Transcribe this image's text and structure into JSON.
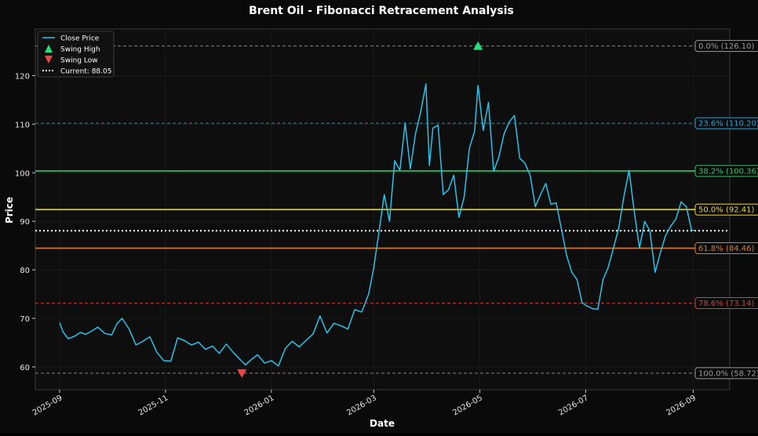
{
  "chart_data": {
    "type": "line",
    "title": "Brent Oil - Fibonacci Retracement Analysis",
    "xlabel": "Date",
    "ylabel": "Price",
    "ylim": [
      55.3,
      129.6
    ],
    "xlim": [
      "2025-08-18",
      "2026-09-22"
    ],
    "grid": true,
    "legend_position": "top-left",
    "y_ticks": [
      60,
      70,
      80,
      90,
      100,
      110,
      120
    ],
    "x_ticks": [
      "2025-09",
      "2025-11",
      "2026-01",
      "2026-03",
      "2026-05",
      "2026-07",
      "2026-09"
    ],
    "legend": [
      {
        "label": "Close Price",
        "kind": "line",
        "color": "#29c3ea"
      },
      {
        "label": "Swing High",
        "kind": "triangle-up",
        "color": "#22e07a"
      },
      {
        "label": "Swing Low",
        "kind": "triangle-down",
        "color": "#ef4444"
      },
      {
        "label": "Current: 88.05",
        "kind": "dotted",
        "color": "#ffffff"
      }
    ],
    "current_price": 88.05,
    "swing_high": {
      "date": "2026-04-30",
      "price": 126.1
    },
    "swing_low": {
      "date": "2025-12-15",
      "price": 58.72
    },
    "fib_levels": [
      {
        "label": "0.0% (126.10)",
        "value": 126.1,
        "color": "#9a9a9a",
        "style": "dashed"
      },
      {
        "label": "23.6% (110.20)",
        "value": 110.2,
        "color": "#2aa4d8",
        "style": "dashed"
      },
      {
        "label": "38.2% (100.36)",
        "value": 100.36,
        "color": "#2fc46a",
        "style": "solid"
      },
      {
        "label": "50.0% (92.41)",
        "value": 92.41,
        "color": "#e8d43c",
        "style": "solid"
      },
      {
        "label": "61.8% (84.46)",
        "value": 84.46,
        "color": "#e07b28",
        "style": "solid"
      },
      {
        "label": "78.6% (73.14)",
        "value": 73.14,
        "color": "#d94040",
        "style": "dashed"
      },
      {
        "label": "100.0% (58.72)",
        "value": 58.72,
        "color": "#9a9a9a",
        "style": "dashed"
      }
    ],
    "series": [
      {
        "name": "Close Price",
        "color": "#29c3ea",
        "points": [
          [
            "2025-09-01",
            69.1
          ],
          [
            "2025-09-03",
            67.2
          ],
          [
            "2025-09-06",
            65.8
          ],
          [
            "2025-09-10",
            66.4
          ],
          [
            "2025-09-13",
            67.1
          ],
          [
            "2025-09-16",
            66.7
          ],
          [
            "2025-09-20",
            67.5
          ],
          [
            "2025-09-23",
            68.2
          ],
          [
            "2025-09-27",
            66.9
          ],
          [
            "2025-10-01",
            66.6
          ],
          [
            "2025-10-04",
            68.9
          ],
          [
            "2025-10-07",
            70.0
          ],
          [
            "2025-10-11",
            67.8
          ],
          [
            "2025-10-15",
            64.5
          ],
          [
            "2025-10-19",
            65.3
          ],
          [
            "2025-10-23",
            66.2
          ],
          [
            "2025-10-27",
            63.0
          ],
          [
            "2025-10-31",
            61.3
          ],
          [
            "2025-11-04",
            61.2
          ],
          [
            "2025-11-08",
            66.0
          ],
          [
            "2025-11-12",
            65.4
          ],
          [
            "2025-11-16",
            64.5
          ],
          [
            "2025-11-20",
            65.1
          ],
          [
            "2025-11-24",
            63.6
          ],
          [
            "2025-11-28",
            64.3
          ],
          [
            "2025-12-02",
            62.8
          ],
          [
            "2025-12-06",
            64.7
          ],
          [
            "2025-12-10",
            63.0
          ],
          [
            "2025-12-14",
            61.5
          ],
          [
            "2025-12-17",
            60.4
          ],
          [
            "2025-12-20",
            61.4
          ],
          [
            "2025-12-24",
            62.5
          ],
          [
            "2025-12-28",
            60.8
          ],
          [
            "2026-01-01",
            61.3
          ],
          [
            "2026-01-05",
            60.2
          ],
          [
            "2026-01-09",
            63.8
          ],
          [
            "2026-01-13",
            65.3
          ],
          [
            "2026-01-17",
            64.1
          ],
          [
            "2026-01-21",
            65.5
          ],
          [
            "2026-01-25",
            66.8
          ],
          [
            "2026-01-29",
            70.5
          ],
          [
            "2026-02-02",
            67.0
          ],
          [
            "2026-02-06",
            69.0
          ],
          [
            "2026-02-10",
            68.5
          ],
          [
            "2026-02-14",
            67.8
          ],
          [
            "2026-02-18",
            71.8
          ],
          [
            "2026-02-22",
            71.3
          ],
          [
            "2026-02-26",
            75.0
          ],
          [
            "2026-03-01",
            80.5
          ],
          [
            "2026-03-04",
            88.0
          ],
          [
            "2026-03-07",
            95.5
          ],
          [
            "2026-03-10",
            90.0
          ],
          [
            "2026-03-13",
            102.5
          ],
          [
            "2026-03-16",
            100.5
          ],
          [
            "2026-03-19",
            110.2
          ],
          [
            "2026-03-22",
            100.8
          ],
          [
            "2026-03-25",
            108.0
          ],
          [
            "2026-03-28",
            112.6
          ],
          [
            "2026-03-31",
            118.3
          ],
          [
            "2026-04-02",
            101.5
          ],
          [
            "2026-04-04",
            109.2
          ],
          [
            "2026-04-07",
            109.8
          ],
          [
            "2026-04-10",
            95.5
          ],
          [
            "2026-04-13",
            96.5
          ],
          [
            "2026-04-16",
            99.5
          ],
          [
            "2026-04-19",
            90.8
          ],
          [
            "2026-04-22",
            95.0
          ],
          [
            "2026-04-25",
            105.0
          ],
          [
            "2026-04-28",
            108.5
          ],
          [
            "2026-04-30",
            118.0
          ],
          [
            "2026-05-03",
            108.7
          ],
          [
            "2026-05-06",
            114.5
          ],
          [
            "2026-05-09",
            100.3
          ],
          [
            "2026-05-12",
            103.2
          ],
          [
            "2026-05-15",
            108.0
          ],
          [
            "2026-05-18",
            110.5
          ],
          [
            "2026-05-21",
            111.8
          ],
          [
            "2026-05-24",
            103.0
          ],
          [
            "2026-05-27",
            102.0
          ],
          [
            "2026-05-30",
            99.5
          ],
          [
            "2026-06-02",
            93.0
          ],
          [
            "2026-06-05",
            95.5
          ],
          [
            "2026-06-08",
            97.8
          ],
          [
            "2026-06-11",
            93.5
          ],
          [
            "2026-06-14",
            93.8
          ],
          [
            "2026-06-17",
            88.5
          ],
          [
            "2026-06-20",
            83.0
          ],
          [
            "2026-06-23",
            79.5
          ],
          [
            "2026-06-26",
            78.0
          ],
          [
            "2026-06-29",
            73.2
          ],
          [
            "2026-07-02",
            72.5
          ],
          [
            "2026-07-05",
            72.0
          ],
          [
            "2026-07-08",
            71.9
          ],
          [
            "2026-07-11",
            78.0
          ],
          [
            "2026-07-14",
            80.5
          ],
          [
            "2026-07-17",
            84.5
          ],
          [
            "2026-07-20",
            88.5
          ],
          [
            "2026-07-23",
            95.0
          ],
          [
            "2026-07-26",
            100.5
          ],
          [
            "2026-07-29",
            92.0
          ],
          [
            "2026-08-01",
            84.5
          ],
          [
            "2026-08-04",
            90.0
          ],
          [
            "2026-08-07",
            88.0
          ],
          [
            "2026-08-10",
            79.5
          ],
          [
            "2026-08-13",
            83.5
          ],
          [
            "2026-08-16",
            87.0
          ],
          [
            "2026-08-19",
            89.0
          ],
          [
            "2026-08-22",
            90.5
          ],
          [
            "2026-08-25",
            94.0
          ],
          [
            "2026-08-28",
            93.0
          ],
          [
            "2026-08-31",
            88.2
          ],
          [
            "2026-09-02",
            88.05
          ]
        ]
      }
    ]
  }
}
